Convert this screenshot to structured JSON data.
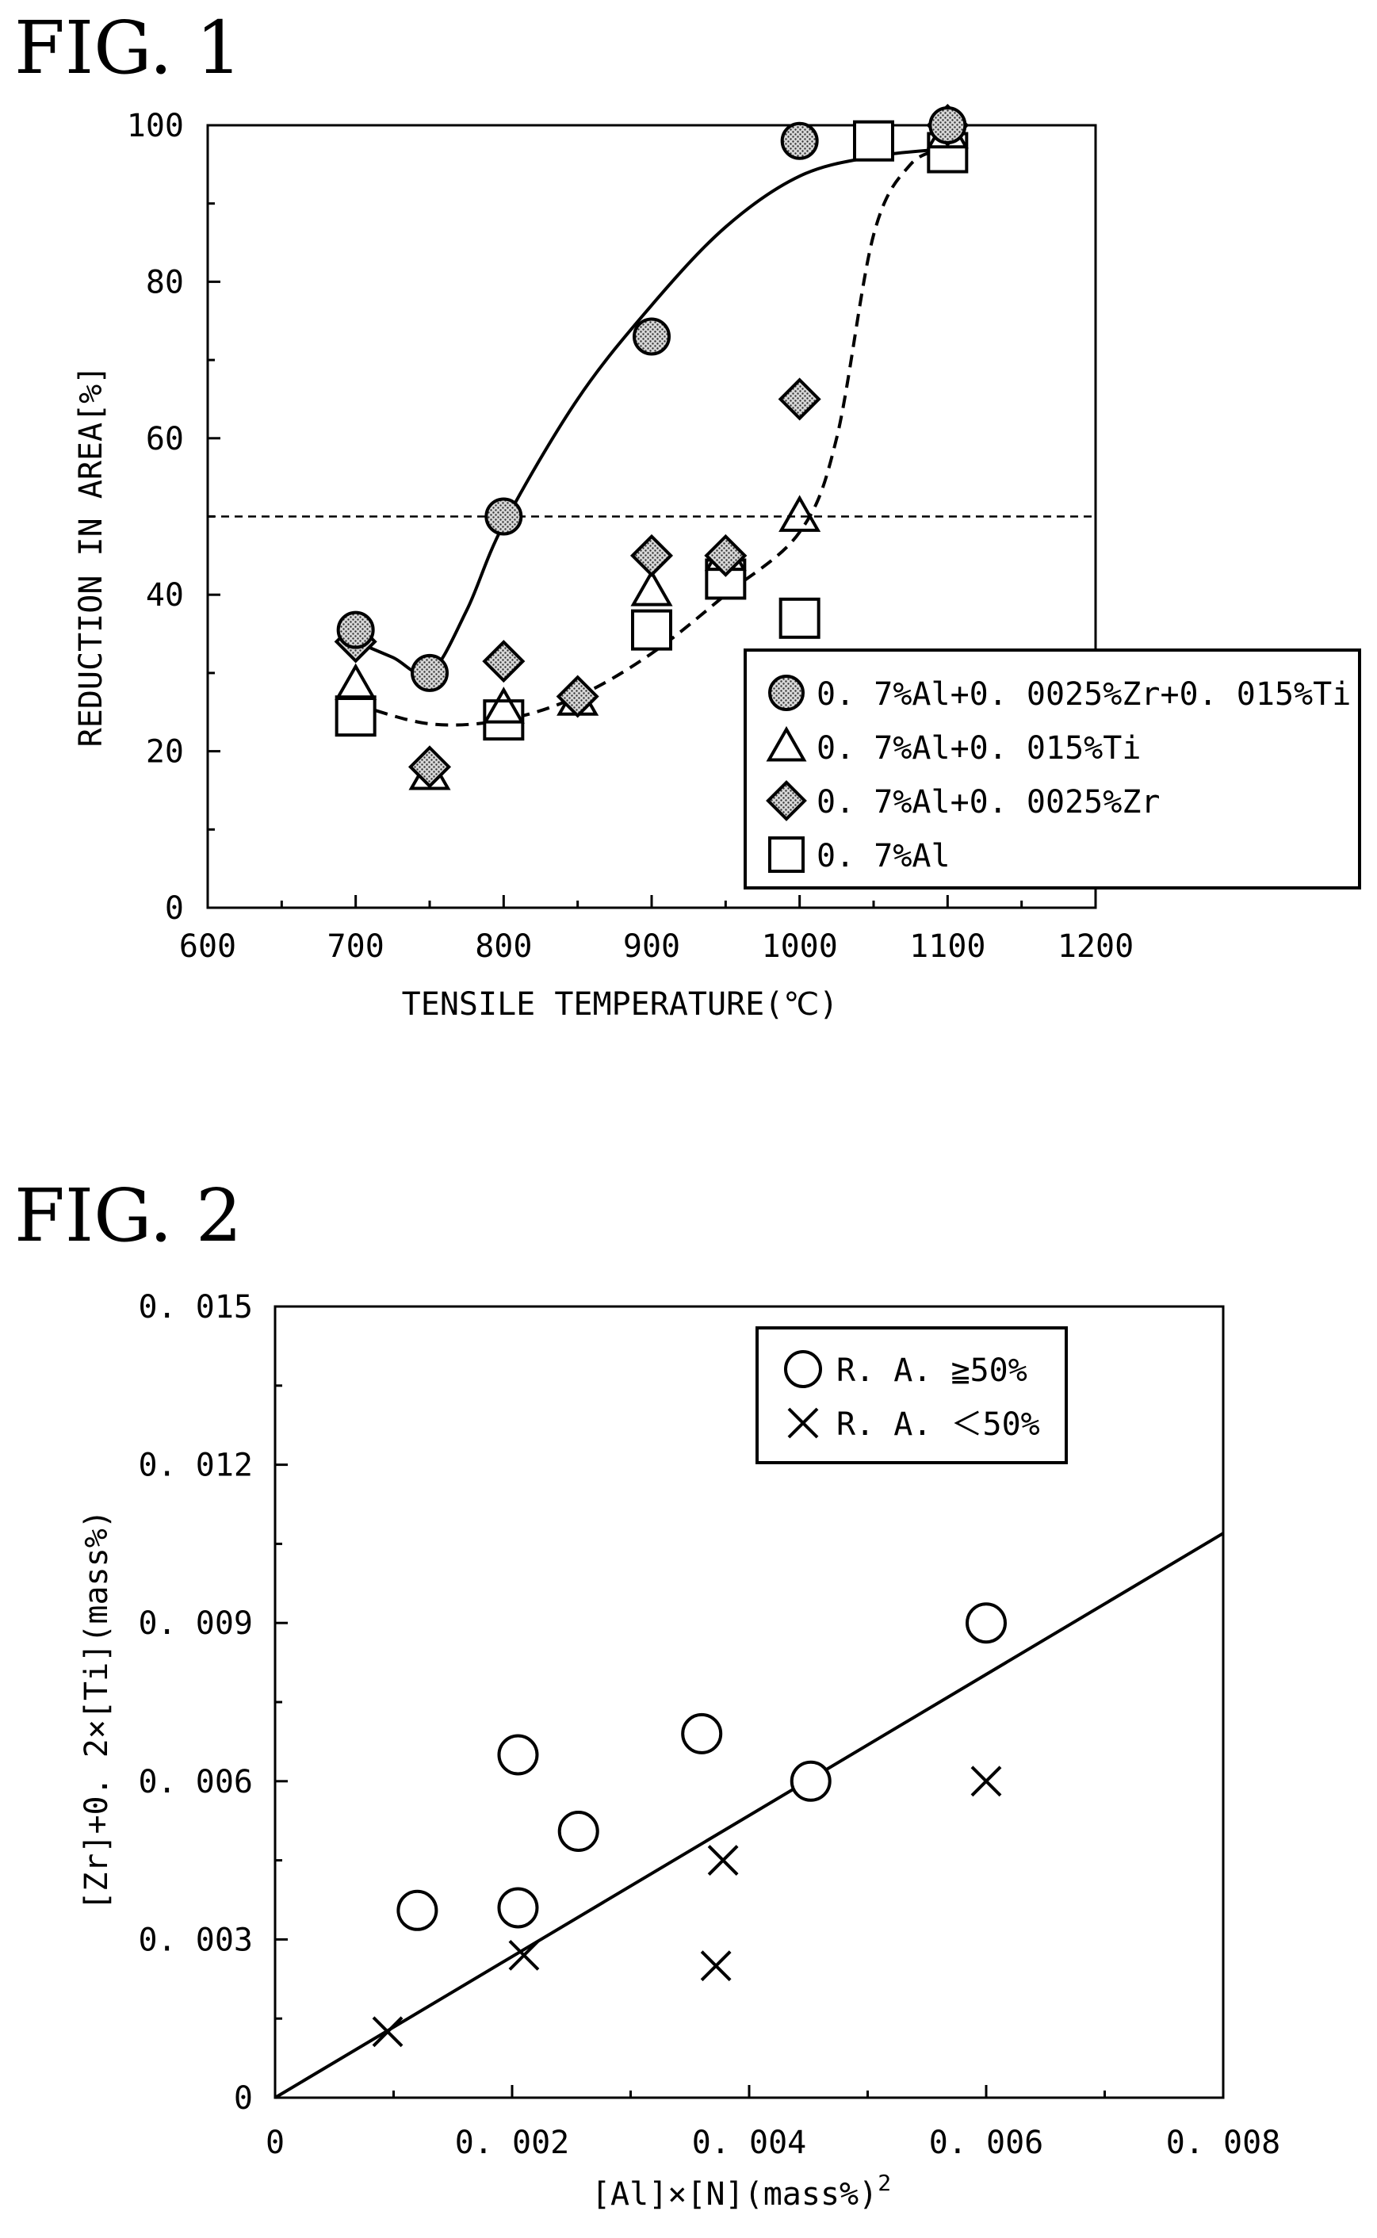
{
  "figures": [
    {
      "title": "FIG. 1"
    },
    {
      "title": "FIG. 2"
    }
  ],
  "chart_data": [
    {
      "type": "scatter",
      "xlabel": "TENSILE TEMPERATURE(℃)",
      "ylabel": "REDUCTION IN AREA[%]",
      "xlim": [
        600,
        1200
      ],
      "ylim": [
        0,
        100
      ],
      "xticks": [
        "600",
        "700",
        "800",
        "900",
        "1000",
        "1100",
        "1200"
      ],
      "yticks": [
        "0",
        "20",
        "40",
        "60",
        "80",
        "100"
      ],
      "grid": false,
      "legend_position": "right",
      "reference_line_y": 50,
      "series": [
        {
          "name": "0. 7%Al+0. 0025%Zr+0. 015%Ti",
          "marker": "dotted-circle",
          "x": [
            700,
            750,
            800,
            900,
            1000,
            1100
          ],
          "y": [
            35.5,
            30,
            50,
            73,
            98,
            100
          ]
        },
        {
          "name": "0. 7%Al+0. 015%Ti",
          "marker": "triangle",
          "x": [
            700,
            750,
            800,
            850,
            900,
            950,
            1000,
            1100
          ],
          "y": [
            28.5,
            17,
            25.5,
            26.5,
            40.5,
            45,
            50,
            99
          ]
        },
        {
          "name": "0. 7%Al+0. 0025%Zr",
          "marker": "dotted-diamond",
          "x": [
            700,
            750,
            800,
            850,
            900,
            950,
            1000,
            1100
          ],
          "y": [
            34,
            18,
            31.5,
            27,
            45,
            45,
            65,
            100
          ]
        },
        {
          "name": "0. 7%Al",
          "marker": "square",
          "x": [
            700,
            800,
            900,
            950,
            1000,
            1050,
            1100
          ],
          "y": [
            24.5,
            24,
            35.5,
            42,
            37,
            98,
            96.5
          ]
        }
      ],
      "curves": [
        {
          "style": "solid",
          "x": [
            700,
            725,
            750,
            775,
            800,
            850,
            900,
            950,
            1000,
            1050,
            1100
          ],
          "y": [
            34,
            32,
            30,
            38,
            49,
            65,
            77,
            87,
            93.5,
            96,
            97
          ]
        },
        {
          "style": "dashed",
          "x": [
            700,
            750,
            800,
            850,
            900,
            950,
            1000,
            1025,
            1050,
            1075,
            1100
          ],
          "y": [
            26,
            23.5,
            24,
            27,
            32.5,
            40,
            48,
            60,
            86,
            95,
            97
          ]
        }
      ]
    },
    {
      "type": "scatter",
      "xlabel": "[Al]×[N](mass%)",
      "xlabel_sup": "2",
      "ylabel": "[Zr]+0. 2×[Ti](mass%)",
      "xlim": [
        0,
        0.008
      ],
      "ylim": [
        0,
        0.015
      ],
      "xticks": [
        "0",
        "0. 002",
        "0. 004",
        "0. 006",
        "0. 008"
      ],
      "yticks": [
        "0",
        "0. 003",
        "0. 006",
        "0. 009",
        "0. 012",
        "0. 015"
      ],
      "grid": false,
      "legend_position": "top-right",
      "series": [
        {
          "name": "R. A. ≧50%",
          "marker": "circle",
          "x": [
            0.0012,
            0.00205,
            0.00205,
            0.00256,
            0.0036,
            0.00452,
            0.006
          ],
          "y": [
            0.00355,
            0.0036,
            0.0065,
            0.00505,
            0.0069,
            0.006,
            0.009
          ]
        },
        {
          "name": "R. A. ＜50%",
          "marker": "cross",
          "x": [
            0.00095,
            0.0021,
            0.00372,
            0.00378,
            0.006
          ],
          "y": [
            0.00125,
            0.0027,
            0.0025,
            0.0045,
            0.006
          ]
        }
      ],
      "trend_line": {
        "x": [
          0,
          0.008
        ],
        "y": [
          0,
          0.0107
        ]
      }
    }
  ]
}
